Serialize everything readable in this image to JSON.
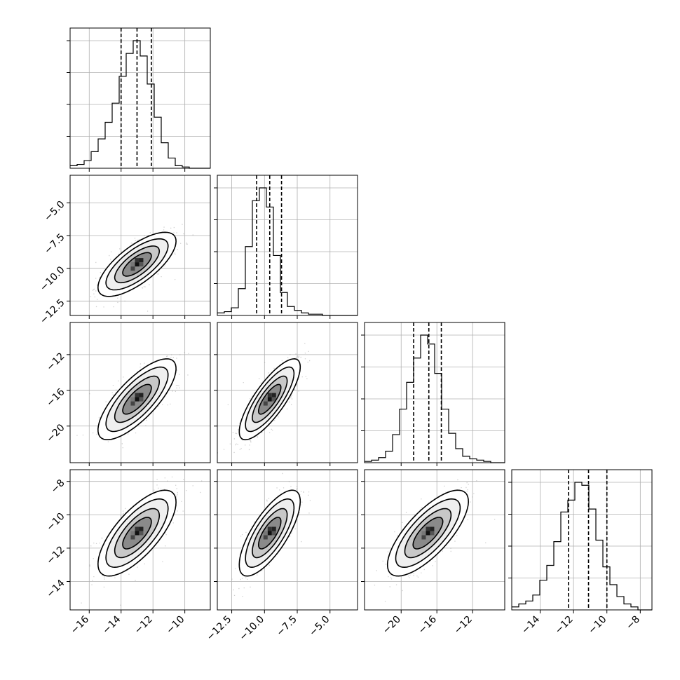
{
  "chart_data": {
    "type": "corner",
    "grid": true,
    "parameters": [
      {
        "range": [
          -17.2,
          -8.4
        ],
        "ticks": [
          -16,
          -14,
          -12,
          -10
        ],
        "tick_labels": [
          "−16",
          "−14",
          "−12",
          "−10"
        ],
        "quantiles": [
          -14.0,
          -13.0,
          -12.1
        ],
        "histogram": {
          "bin_start": -17.2,
          "bin_width": 0.44,
          "counts": [
            2,
            3,
            6,
            13,
            23,
            36,
            51,
            72,
            90,
            100,
            88,
            66,
            40,
            20,
            8,
            2,
            1,
            0,
            0,
            0
          ]
        }
      },
      {
        "range": [
          -13.6,
          -2.9
        ],
        "ticks": [
          -12.5,
          -10.0,
          -7.5,
          -5.0
        ],
        "tick_labels": [
          "−12.5",
          "−10.0",
          "−7.5",
          "−5.0"
        ],
        "quantiles": [
          -10.6,
          -9.6,
          -8.7
        ],
        "histogram": {
          "bin_start": -13.6,
          "bin_width": 0.535,
          "counts": [
            2,
            3,
            6,
            21,
            54,
            90,
            100,
            85,
            47,
            18,
            7,
            4,
            2,
            1,
            1,
            0,
            0,
            0,
            0,
            0
          ]
        }
      },
      {
        "range": [
          -24.1,
          -8.4
        ],
        "ticks": [
          -20,
          -16,
          -12
        ],
        "tick_labels": [
          "−20",
          "−16",
          "−12"
        ],
        "quantiles": [
          -18.6,
          -16.9,
          -15.5
        ],
        "histogram": {
          "bin_start": -24.1,
          "bin_width": 0.785,
          "counts": [
            1,
            2,
            4,
            9,
            22,
            42,
            63,
            82,
            100,
            93,
            70,
            42,
            23,
            11,
            5,
            3,
            2,
            1,
            0,
            0
          ]
        }
      },
      {
        "range": [
          -15.7,
          -7.3
        ],
        "ticks": [
          -14,
          -12,
          -10,
          -8
        ],
        "tick_labels": [
          "−14",
          "−12",
          "−10",
          "−8"
        ],
        "quantiles": [
          -12.3,
          -11.1,
          -10.0
        ],
        "histogram": {
          "bin_start": -15.7,
          "bin_width": 0.42,
          "counts": [
            2,
            4,
            6,
            10,
            20,
            30,
            46,
            66,
            74,
            86,
            84,
            68,
            47,
            29,
            17,
            9,
            4,
            2,
            0,
            0
          ]
        }
      }
    ],
    "pairs": [
      {
        "row": 1,
        "col": 0,
        "center": [
          -13.0,
          -9.7
        ],
        "sd": [
          1.0,
          1.0
        ],
        "corr": 0.72
      },
      {
        "row": 2,
        "col": 0,
        "center": [
          -13.0,
          -17.0
        ],
        "sd": [
          1.0,
          1.85
        ],
        "corr": 0.76
      },
      {
        "row": 2,
        "col": 1,
        "center": [
          -9.6,
          -17.0
        ],
        "sd": [
          0.95,
          1.85
        ],
        "corr": 0.8
      },
      {
        "row": 3,
        "col": 0,
        "center": [
          -13.0,
          -11.1
        ],
        "sd": [
          1.0,
          1.05
        ],
        "corr": 0.72
      },
      {
        "row": 3,
        "col": 1,
        "center": [
          -9.6,
          -11.1
        ],
        "sd": [
          0.95,
          1.05
        ],
        "corr": 0.74
      },
      {
        "row": 3,
        "col": 2,
        "center": [
          -17.0,
          -11.1
        ],
        "sd": [
          1.85,
          1.05
        ],
        "corr": 0.74
      }
    ]
  }
}
